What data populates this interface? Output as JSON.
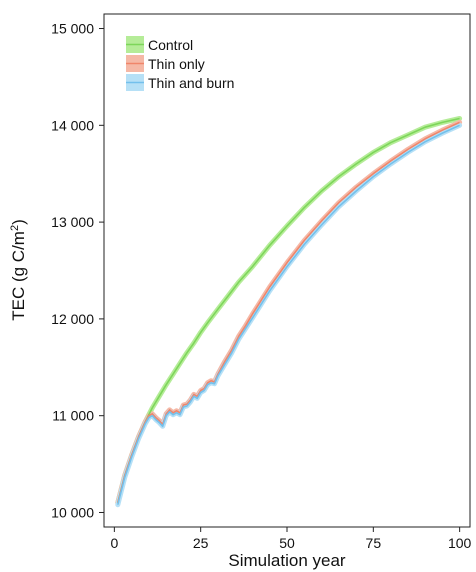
{
  "chart_data": {
    "type": "line",
    "xlabel": "Simulation year",
    "ylabel_main": "TEC (g C/m",
    "ylabel_sup": "2",
    "ylabel_close": ")",
    "xlim": [
      -3,
      103
    ],
    "ylim": [
      9850,
      15150
    ],
    "x_ticks": [
      0,
      25,
      50,
      75,
      100
    ],
    "x_tick_labels": [
      "0",
      "25",
      "50",
      "75",
      "100"
    ],
    "y_ticks": [
      10000,
      11000,
      12000,
      13000,
      14000,
      15000
    ],
    "y_tick_labels": [
      "10 000",
      "11 000",
      "12 000",
      "13 000",
      "14 000",
      "15 000"
    ],
    "grid": false,
    "legend_position": "top-left",
    "series": [
      {
        "name": "Control",
        "color": "#7dd65a",
        "band_color": "#b5ec98",
        "x": [
          1,
          3,
          5,
          7,
          9,
          11,
          13,
          15,
          17,
          19,
          21,
          23,
          25,
          27,
          30,
          33,
          36,
          40,
          45,
          50,
          55,
          60,
          65,
          70,
          75,
          80,
          85,
          90,
          95,
          100
        ],
        "y": [
          10100,
          10380,
          10590,
          10780,
          10940,
          11080,
          11200,
          11320,
          11430,
          11540,
          11650,
          11750,
          11860,
          11960,
          12100,
          12240,
          12380,
          12540,
          12760,
          12960,
          13150,
          13320,
          13470,
          13600,
          13720,
          13820,
          13900,
          13980,
          14030,
          14070
        ]
      },
      {
        "name": "Thin only",
        "color": "#f0856a",
        "band_color": "#f5b8a6",
        "x": [
          1,
          3,
          5,
          7,
          9,
          10,
          11,
          12,
          13,
          14,
          15,
          16,
          17,
          18,
          19,
          20,
          21,
          22,
          23,
          24,
          25,
          26,
          27,
          28,
          29,
          30,
          32,
          34,
          36,
          38,
          40,
          45,
          50,
          55,
          60,
          65,
          70,
          75,
          80,
          85,
          90,
          95,
          100
        ],
        "y": [
          10100,
          10380,
          10590,
          10780,
          10940,
          11000,
          11020,
          10980,
          10950,
          10910,
          11020,
          11060,
          11030,
          11050,
          11030,
          11110,
          11120,
          11160,
          11220,
          11200,
          11260,
          11280,
          11340,
          11360,
          11350,
          11430,
          11560,
          11680,
          11820,
          11930,
          12050,
          12330,
          12580,
          12810,
          13010,
          13200,
          13360,
          13500,
          13630,
          13750,
          13860,
          13950,
          14030
        ]
      },
      {
        "name": "Thin and burn",
        "color": "#73c0ec",
        "band_color": "#b6e0f6",
        "x": [
          1,
          3,
          5,
          7,
          9,
          10,
          11,
          12,
          13,
          14,
          15,
          16,
          17,
          18,
          19,
          20,
          21,
          22,
          23,
          24,
          25,
          26,
          27,
          28,
          29,
          30,
          32,
          34,
          36,
          38,
          40,
          45,
          50,
          55,
          60,
          65,
          70,
          75,
          80,
          85,
          90,
          95,
          100
        ],
        "y": [
          10080,
          10360,
          10570,
          10760,
          10920,
          10980,
          11000,
          10960,
          10930,
          10890,
          11000,
          11040,
          11010,
          11030,
          11010,
          11090,
          11100,
          11140,
          11200,
          11180,
          11240,
          11260,
          11320,
          11340,
          11330,
          11410,
          11530,
          11650,
          11790,
          11900,
          12010,
          12290,
          12540,
          12770,
          12970,
          13160,
          13320,
          13470,
          13600,
          13720,
          13830,
          13920,
          14000
        ]
      }
    ]
  }
}
